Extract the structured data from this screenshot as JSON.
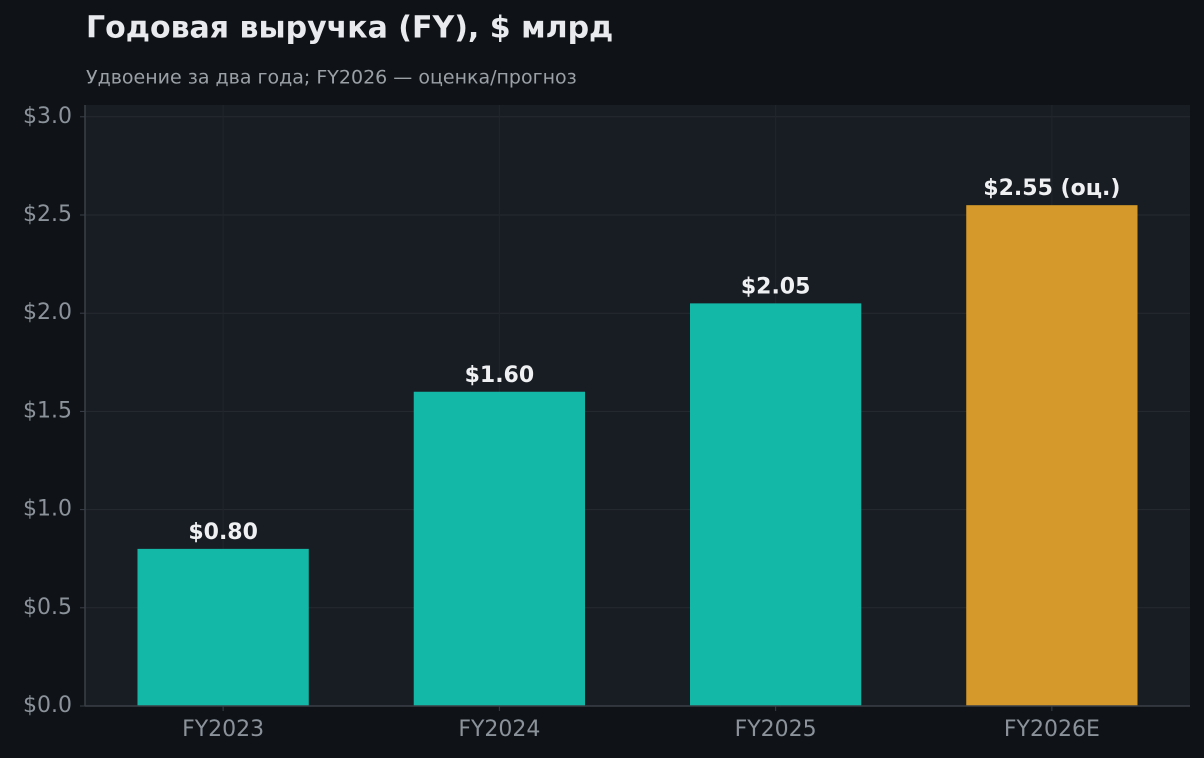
{
  "chart_data": {
    "type": "bar",
    "title": "Годовая выручка (FY), $ млрд",
    "subtitle": "Удвоение за два года; FY2026 — оценка/прогноз",
    "categories": [
      "FY2023",
      "FY2024",
      "FY2025",
      "FY2026E"
    ],
    "values": [
      0.8,
      1.6,
      2.05,
      2.55
    ],
    "value_labels": [
      "$0.80",
      "$1.60",
      "$2.05",
      "$2.55 (оц.)"
    ],
    "colors": [
      "#14b8a6",
      "#14b8a6",
      "#14b8a6",
      "#d4992a"
    ],
    "ylim": [
      0,
      3.06
    ],
    "yticks": [
      {
        "value": 0,
        "label": "$0.0"
      },
      {
        "value": 0.5,
        "label": "$0.5"
      },
      {
        "value": 1.0,
        "label": "$1.0"
      },
      {
        "value": 1.5,
        "label": "$1.5"
      },
      {
        "value": 2.0,
        "label": "$2.0"
      },
      {
        "value": 2.5,
        "label": "$2.5"
      },
      {
        "value": 3.0,
        "label": "$3.0"
      }
    ],
    "grid": true
  }
}
